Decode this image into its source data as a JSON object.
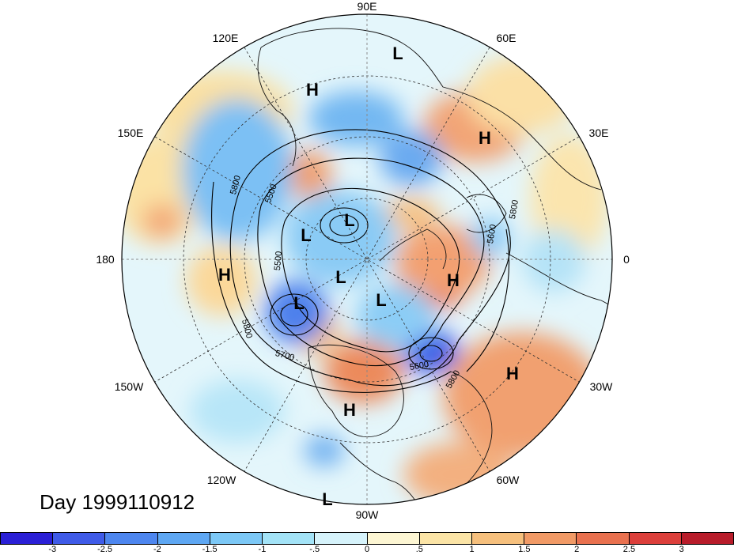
{
  "title": "Day 1999110912",
  "lon_labels": [
    {
      "text": "90E",
      "key": "n"
    },
    {
      "text": "60E",
      "key": "ne1"
    },
    {
      "text": "30E",
      "key": "ne2"
    },
    {
      "text": "0",
      "key": "e"
    },
    {
      "text": "30W",
      "key": "se2"
    },
    {
      "text": "60W",
      "key": "se1"
    },
    {
      "text": "90W",
      "key": "s"
    },
    {
      "text": "120W",
      "key": "sw1"
    },
    {
      "text": "150W",
      "key": "sw2"
    },
    {
      "text": "180",
      "key": "w"
    },
    {
      "text": "150E",
      "key": "nw2"
    },
    {
      "text": "120E",
      "key": "nw1"
    }
  ],
  "pressure_centers": [
    "H",
    "L",
    "H",
    "L",
    "L",
    "L",
    "H",
    "L",
    "L",
    "H",
    "H",
    "H",
    "L"
  ],
  "contour_labels": [
    "5800",
    "5500",
    "5500",
    "5600",
    "5700",
    "5800",
    "5800",
    "5600",
    "5800"
  ],
  "colorbar": {
    "colors": [
      "#2a1fd6",
      "#3f5be8",
      "#4d86ef",
      "#5ea7f3",
      "#7cc8f6",
      "#a3e3f7",
      "#d6f3fb",
      "#fdf6d3",
      "#fbe4a6",
      "#f6c07d",
      "#f19a66",
      "#e9714f",
      "#dc3f3b",
      "#b81c2a"
    ],
    "ticks": [
      "-3",
      "-2.5",
      "-2",
      "-1.5",
      "-1",
      "-.5",
      "0",
      ".5",
      "1",
      "1.5",
      "2",
      "2.5",
      "3"
    ]
  }
}
